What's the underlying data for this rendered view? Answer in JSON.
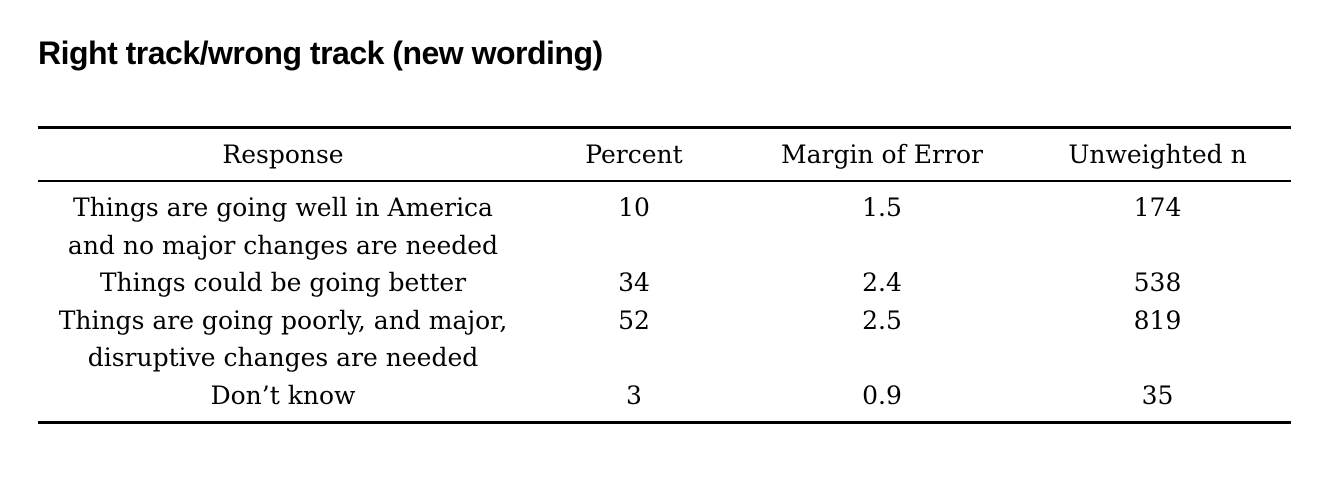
{
  "page": {
    "title": "Right track/wrong track (new wording)"
  },
  "table": {
    "columns": [
      "Response",
      "Percent",
      "Margin of Error",
      "Unweighted n"
    ],
    "rows": [
      {
        "response": "Things are going well in America\nand no major changes are needed",
        "percent": "10",
        "margin_of_error": "1.5",
        "unweighted_n": "174"
      },
      {
        "response": "Things could be going better",
        "percent": "34",
        "margin_of_error": "2.4",
        "unweighted_n": "538"
      },
      {
        "response": "Things are going poorly, and major,\ndisruptive changes are needed",
        "percent": "52",
        "margin_of_error": "2.5",
        "unweighted_n": "819"
      },
      {
        "response": "Don’t know",
        "percent": "3",
        "margin_of_error": "0.9",
        "unweighted_n": "35"
      }
    ]
  },
  "colors": {
    "background": "#ffffff",
    "text": "#000000",
    "rule": "#000000"
  }
}
